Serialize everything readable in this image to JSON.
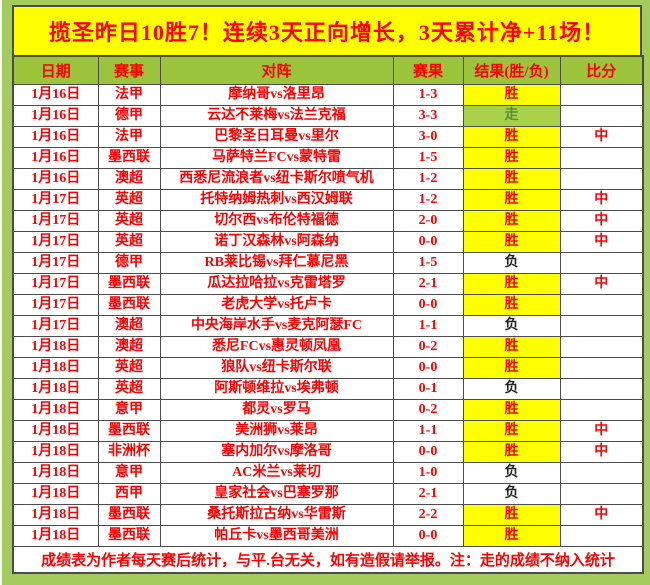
{
  "banner": {
    "text": "揽圣昨日10胜7！连续3天正向增长，3天累计净+11场！"
  },
  "table": {
    "headers": [
      "日期",
      "赛事",
      "对阵",
      "赛果",
      "结果(胜/负)",
      "比分"
    ],
    "rows": [
      {
        "date": "1月16日",
        "league": "法甲",
        "match": "摩纳哥vs洛里昂",
        "score": "1-3",
        "result": "胜",
        "type": "win",
        "hit": ""
      },
      {
        "date": "1月16日",
        "league": "德甲",
        "match": "云达不莱梅vs法兰克福",
        "score": "3-3",
        "result": "走",
        "type": "push",
        "hit": ""
      },
      {
        "date": "1月16日",
        "league": "法甲",
        "match": "巴黎圣日耳曼vs里尔",
        "score": "3-0",
        "result": "胜",
        "type": "win",
        "hit": "中"
      },
      {
        "date": "1月16日",
        "league": "墨西联",
        "match": "马萨特兰FCvs蒙特雷",
        "score": "1-5",
        "result": "胜",
        "type": "win",
        "hit": ""
      },
      {
        "date": "1月16日",
        "league": "澳超",
        "match": "西悉尼流浪者vs纽卡斯尔喷气机",
        "score": "1-2",
        "result": "胜",
        "type": "win",
        "hit": ""
      },
      {
        "date": "1月17日",
        "league": "英超",
        "match": "托特纳姆热刺vs西汉姆联",
        "score": "1-2",
        "result": "胜",
        "type": "win",
        "hit": "中"
      },
      {
        "date": "1月17日",
        "league": "英超",
        "match": "切尔西vs布伦特福德",
        "score": "2-0",
        "result": "胜",
        "type": "win",
        "hit": "中"
      },
      {
        "date": "1月17日",
        "league": "英超",
        "match": "诺丁汉森林vs阿森纳",
        "score": "0-0",
        "result": "胜",
        "type": "win",
        "hit": "中"
      },
      {
        "date": "1月17日",
        "league": "德甲",
        "match": "RB莱比锡vs拜仁慕尼黑",
        "score": "1-5",
        "result": "负",
        "type": "lose",
        "hit": ""
      },
      {
        "date": "1月17日",
        "league": "墨西联",
        "match": "瓜达拉哈拉vs克雷塔罗",
        "score": "2-1",
        "result": "胜",
        "type": "win",
        "hit": "中"
      },
      {
        "date": "1月17日",
        "league": "墨西联",
        "match": "老虎大学vs托卢卡",
        "score": "0-0",
        "result": "胜",
        "type": "win",
        "hit": ""
      },
      {
        "date": "1月17日",
        "league": "澳超",
        "match": "中央海岸水手vs麦克阿瑟FC",
        "score": "1-1",
        "result": "负",
        "type": "lose",
        "hit": ""
      },
      {
        "date": "1月18日",
        "league": "澳超",
        "match": "悉尼FCvs惠灵顿凤凰",
        "score": "0-2",
        "result": "胜",
        "type": "win",
        "hit": ""
      },
      {
        "date": "1月18日",
        "league": "英超",
        "match": "狼队vs纽卡斯尔联",
        "score": "0-0",
        "result": "胜",
        "type": "win",
        "hit": ""
      },
      {
        "date": "1月18日",
        "league": "英超",
        "match": "阿斯顿维拉vs埃弗顿",
        "score": "0-1",
        "result": "负",
        "type": "lose",
        "hit": ""
      },
      {
        "date": "1月18日",
        "league": "意甲",
        "match": "都灵vs罗马",
        "score": "0-2",
        "result": "胜",
        "type": "win",
        "hit": ""
      },
      {
        "date": "1月18日",
        "league": "墨西联",
        "match": "美洲狮vs莱昂",
        "score": "1-1",
        "result": "胜",
        "type": "win",
        "hit": "中"
      },
      {
        "date": "1月18日",
        "league": "非洲杯",
        "match": "塞内加尔vs摩洛哥",
        "score": "0-0",
        "result": "胜",
        "type": "win",
        "hit": "中"
      },
      {
        "date": "1月18日",
        "league": "意甲",
        "match": "AC米兰vs莱切",
        "score": "1-0",
        "result": "负",
        "type": "lose",
        "hit": ""
      },
      {
        "date": "1月18日",
        "league": "西甲",
        "match": "皇家社会vs巴塞罗那",
        "score": "2-1",
        "result": "负",
        "type": "lose",
        "hit": ""
      },
      {
        "date": "1月18日",
        "league": "墨西联",
        "match": "桑托斯拉古纳vs华雷斯",
        "score": "2-2",
        "result": "胜",
        "type": "win",
        "hit": "中"
      },
      {
        "date": "1月18日",
        "league": "墨西联",
        "match": "帕丘卡vs墨西哥美洲",
        "score": "0-0",
        "result": "胜",
        "type": "win",
        "hit": ""
      }
    ]
  },
  "footer": {
    "text": "成绩表为作者每天赛后统计，与平.台无关，如有造假请举报。注：走的成绩不纳入统计"
  },
  "colors": {
    "page_background": "#A3CB5E",
    "banner_background": "#FFFF00",
    "header_row_background": "#9CC43B",
    "text_red": "#FE0000",
    "win_cell_background": "#FFFF00",
    "push_cell_background": "#A7D14B",
    "push_text": "#5D8F31",
    "lose_text": "#262626",
    "grid_border": "#4C4C4C"
  }
}
